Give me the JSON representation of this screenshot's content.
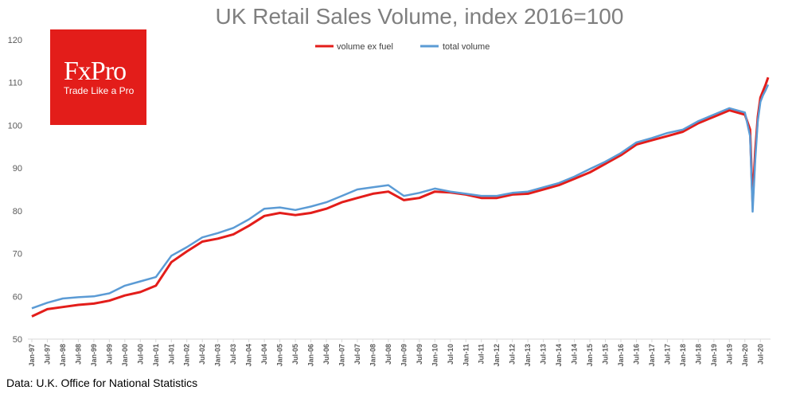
{
  "logo": {
    "word": "FxPro",
    "tagline": "Trade Like a Pro"
  },
  "source": "Data: U.K. Office for National Statistics",
  "chart_data": {
    "type": "line",
    "title": "UK Retail Sales Volume, index 2016=100",
    "xlabel": "",
    "ylabel": "",
    "ylim": [
      50,
      120
    ],
    "yticks": [
      50,
      60,
      70,
      80,
      90,
      100,
      110,
      120
    ],
    "grid": false,
    "legend": "top-center",
    "x_tick_labels": [
      "Jan-97",
      "Jul-97",
      "Jan-98",
      "Jul-98",
      "Jan-99",
      "Jul-99",
      "Jan-00",
      "Jul-00",
      "Jan-01",
      "Jul-01",
      "Jan-02",
      "Jul-02",
      "Jan-03",
      "Jul-03",
      "Jan-04",
      "Jul-04",
      "Jan-05",
      "Jul-05",
      "Jan-06",
      "Jul-06",
      "Jan-07",
      "Jul-07",
      "Jan-08",
      "Jul-08",
      "Jan-09",
      "Jul-09",
      "Jan-10",
      "Jul-10",
      "Jan-11",
      "Jul-11",
      "Jan-12",
      "Jul-12",
      "Jan-13",
      "Jul-13",
      "Jan-14",
      "Jul-14",
      "Jan-15",
      "Jul-15",
      "Jan-16",
      "Jul-16",
      "Jan-17",
      "Jul-17",
      "Jan-18",
      "Jul-18",
      "Jan-19",
      "Jul-19",
      "Jan-20",
      "Jul-20"
    ],
    "x": [
      "Jan-97",
      "Jul-97",
      "Jan-98",
      "Jul-98",
      "Jan-99",
      "Jul-99",
      "Jan-00",
      "Jul-00",
      "Jan-01",
      "Jul-01",
      "Jan-02",
      "Jul-02",
      "Jan-03",
      "Jul-03",
      "Jan-04",
      "Jul-04",
      "Jan-05",
      "Jul-05",
      "Jan-06",
      "Jul-06",
      "Jan-07",
      "Jul-07",
      "Jan-08",
      "Jul-08",
      "Jan-09",
      "Jul-09",
      "Jan-10",
      "Jul-10",
      "Jan-11",
      "Jul-11",
      "Jan-12",
      "Jul-12",
      "Jan-13",
      "Jul-13",
      "Jan-14",
      "Jul-14",
      "Jan-15",
      "Jul-15",
      "Jan-16",
      "Jul-16",
      "Jan-17",
      "Jul-17",
      "Jan-18",
      "Jul-18",
      "Jan-19",
      "Jul-19",
      "Jan-20",
      "Mar-20",
      "Apr-20",
      "May-20",
      "Jun-20",
      "Jul-20",
      "Aug-20",
      "Sep-20",
      "Oct-20"
    ],
    "series": [
      {
        "name": "volume ex fuel",
        "color": "#e31d1a",
        "values": [
          55.3,
          57.0,
          57.5,
          58.0,
          58.3,
          59.0,
          60.2,
          61.0,
          62.5,
          68.0,
          70.5,
          72.8,
          73.5,
          74.5,
          76.5,
          78.8,
          79.5,
          79.0,
          79.5,
          80.5,
          82.0,
          83.0,
          84.0,
          84.5,
          82.5,
          83.0,
          84.5,
          84.3,
          83.8,
          83.0,
          83.0,
          83.8,
          84.0,
          85.0,
          86.0,
          87.5,
          89.0,
          91.0,
          93.0,
          95.5,
          96.5,
          97.5,
          98.5,
          100.5,
          102.0,
          103.5,
          102.5,
          99.0,
          82.0,
          94.0,
          102.0,
          106.5,
          108.0,
          109.5,
          111.2
        ]
      },
      {
        "name": "total volume",
        "color": "#5b9bd5",
        "values": [
          57.2,
          58.5,
          59.5,
          59.8,
          60.0,
          60.7,
          62.5,
          63.5,
          64.5,
          69.5,
          71.5,
          73.8,
          74.8,
          76.0,
          78.0,
          80.5,
          80.8,
          80.2,
          81.0,
          82.0,
          83.5,
          85.0,
          85.5,
          86.0,
          83.5,
          84.2,
          85.2,
          84.5,
          84.0,
          83.5,
          83.5,
          84.2,
          84.5,
          85.5,
          86.5,
          88.0,
          89.8,
          91.5,
          93.5,
          96.0,
          97.0,
          98.2,
          99.0,
          101.0,
          102.5,
          104.0,
          103.0,
          97.5,
          79.8,
          92.0,
          101.0,
          105.5,
          107.0,
          108.2,
          109.5
        ]
      }
    ]
  }
}
